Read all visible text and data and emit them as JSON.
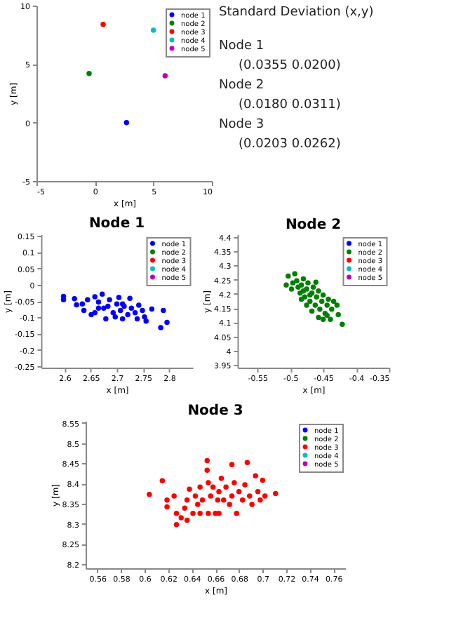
{
  "chart_data": [
    {
      "type": "scatter",
      "xlabel": "x [m]",
      "ylabel": "y [m]",
      "xlim": [
        -5,
        10
      ],
      "ylim": [
        -5,
        10
      ],
      "xticks": [
        -5,
        0,
        5,
        10
      ],
      "yticks": [
        -5,
        0,
        5,
        10
      ],
      "legend": "top right",
      "marker": "circle",
      "series": [
        {
          "name": "node 1",
          "color": "#0000ff",
          "x": [
            2.7
          ],
          "values": [
            0
          ]
        },
        {
          "name": "node 2",
          "color": "#008000",
          "x": [
            -0.5
          ],
          "values": [
            4.2
          ]
        },
        {
          "name": "node 3",
          "color": "#ff0000",
          "x": [
            0.7
          ],
          "values": [
            8.4
          ]
        },
        {
          "name": "node 4",
          "color": "#00bfbf",
          "x": [
            5.0
          ],
          "values": [
            7.9
          ]
        },
        {
          "name": "node 5",
          "color": "#bf00bf",
          "x": [
            6.0
          ],
          "values": [
            4.0
          ]
        }
      ]
    },
    {
      "type": "other",
      "title": "Standard Deviation (x,y)",
      "annotations": [
        "Node 1",
        "(0.0355     0.0200)",
        "Node 2",
        "(0.0180     0.0311)",
        "Node 3",
        "(0.0203     0.0262)"
      ]
    },
    {
      "type": "scatter",
      "title": "Node 1",
      "xlabel": "x [m]",
      "ylabel": "y [m]",
      "xlim": [
        2.555,
        2.845
      ],
      "ylim": [
        -0.255,
        0.155
      ],
      "xticks": [
        2.6,
        2.65,
        2.7,
        2.75,
        2.8
      ],
      "yticks": [
        -0.25,
        -0.2,
        -0.15,
        -0.1,
        -0.05,
        0,
        0.05,
        0.1,
        0.15
      ],
      "legend": "top right",
      "marker": "circle",
      "series": [
        {
          "name": "node 1",
          "color": "#0000ff",
          "x": [
            2.598,
            2.598,
            2.619,
            2.623,
            2.634,
            2.637,
            2.644,
            2.651,
            2.658,
            2.665,
            2.672,
            2.675,
            2.679,
            2.686,
            2.693,
            2.7,
            2.704,
            2.707,
            2.711,
            2.714,
            2.721,
            2.725,
            2.728,
            2.735,
            2.739,
            2.742,
            2.749,
            2.753,
            2.756,
            2.767,
            2.789,
            2.784,
            2.796,
            2.665,
            2.683,
            2.697,
            2.711,
            2.658
          ],
          "values": [
            -0.036,
            -0.046,
            -0.043,
            -0.062,
            -0.059,
            -0.079,
            -0.046,
            -0.092,
            -0.037,
            -0.053,
            -0.029,
            -0.072,
            -0.105,
            -0.046,
            -0.086,
            -0.059,
            -0.039,
            -0.079,
            -0.105,
            -0.066,
            -0.092,
            -0.042,
            -0.072,
            -0.086,
            -0.105,
            -0.063,
            -0.079,
            -0.099,
            -0.112,
            -0.075,
            -0.079,
            -0.132,
            -0.116,
            -0.072,
            -0.066,
            -0.099,
            -0.059,
            -0.086
          ]
        },
        {
          "name": "node 2",
          "color": "#008000"
        },
        {
          "name": "node 3",
          "color": "#ff0000"
        },
        {
          "name": "node 4",
          "color": "#00bfbf"
        },
        {
          "name": "node 5",
          "color": "#bf00bf"
        }
      ]
    },
    {
      "type": "scatter",
      "title": "Node 2",
      "xlabel": "x [m]",
      "ylabel": "y [m]",
      "xlim": [
        -0.58,
        -0.35
      ],
      "ylim": [
        3.94,
        4.41
      ],
      "xticks": [
        -0.55,
        -0.5,
        -0.45,
        -0.4,
        -0.35
      ],
      "yticks": [
        3.95,
        4,
        4.05,
        4.1,
        4.15,
        4.2,
        4.25,
        4.3,
        4.35,
        4.4
      ],
      "legend": "top right",
      "marker": "circle",
      "series": [
        {
          "name": "node 1",
          "color": "#0000ff"
        },
        {
          "name": "node 2",
          "color": "#008000",
          "x": [
            -0.506,
            -0.503,
            -0.493,
            -0.498,
            -0.49,
            -0.485,
            -0.483,
            -0.48,
            -0.478,
            -0.475,
            -0.473,
            -0.47,
            -0.467,
            -0.465,
            -0.462,
            -0.46,
            -0.457,
            -0.455,
            -0.452,
            -0.45,
            -0.447,
            -0.444,
            -0.442,
            -0.439,
            -0.437,
            -0.434,
            -0.429,
            -0.427,
            -0.421,
            -0.467,
            -0.475,
            -0.483,
            -0.457,
            -0.45,
            -0.444,
            -0.488,
            -0.496,
            -0.461,
            -0.48,
            -0.47
          ],
          "values": [
            4.231,
            4.263,
            4.271,
            4.217,
            4.246,
            4.203,
            4.231,
            4.253,
            4.189,
            4.217,
            4.239,
            4.174,
            4.203,
            4.224,
            4.16,
            4.189,
            4.21,
            4.146,
            4.174,
            4.196,
            4.131,
            4.16,
            4.181,
            4.11,
            4.146,
            4.174,
            4.16,
            4.127,
            4.093,
            4.139,
            4.16,
            4.181,
            4.117,
            4.11,
            4.124,
            4.224,
            4.239,
            4.241,
            4.21,
            4.196
          ]
        },
        {
          "name": "node 3",
          "color": "#ff0000"
        },
        {
          "name": "node 4",
          "color": "#00bfbf"
        },
        {
          "name": "node 5",
          "color": "#bf00bf"
        }
      ]
    },
    {
      "type": "scatter",
      "title": "Node 3",
      "xlabel": "x [m]",
      "ylabel": "y [m]",
      "xlim": [
        0.55,
        0.77
      ],
      "ylim": [
        8.19,
        8.555
      ],
      "xticks": [
        0.56,
        0.58,
        0.6,
        0.62,
        0.64,
        0.66,
        0.68,
        0.7,
        0.72,
        0.74,
        0.76
      ],
      "yticks": [
        8.2,
        8.25,
        8.3,
        8.35,
        8.4,
        8.45,
        8.5,
        8.55
      ],
      "legend": "top right",
      "marker": "circle",
      "series": [
        {
          "name": "node 1",
          "color": "#0000ff"
        },
        {
          "name": "node 2",
          "color": "#008000"
        },
        {
          "name": "node 3",
          "color": "#ff0000",
          "x": [
            0.604,
            0.615,
            0.619,
            0.619,
            0.625,
            0.627,
            0.627,
            0.631,
            0.634,
            0.636,
            0.638,
            0.641,
            0.643,
            0.645,
            0.647,
            0.649,
            0.653,
            0.653,
            0.654,
            0.654,
            0.656,
            0.658,
            0.66,
            0.662,
            0.663,
            0.665,
            0.667,
            0.669,
            0.672,
            0.674,
            0.674,
            0.676,
            0.678,
            0.68,
            0.683,
            0.685,
            0.687,
            0.689,
            0.691,
            0.694,
            0.696,
            0.698,
            0.7,
            0.702,
            0.711,
            0.636,
            0.647,
            0.663
          ],
          "values": [
            8.373,
            8.407,
            8.359,
            8.342,
            8.369,
            8.326,
            8.298,
            8.315,
            8.339,
            8.359,
            8.386,
            8.326,
            8.369,
            8.348,
            8.391,
            8.359,
            8.457,
            8.433,
            8.402,
            8.326,
            8.369,
            8.391,
            8.326,
            8.359,
            8.38,
            8.413,
            8.359,
            8.391,
            8.348,
            8.447,
            8.369,
            8.402,
            8.326,
            8.38,
            8.359,
            8.397,
            8.452,
            8.369,
            8.348,
            8.419,
            8.38,
            8.359,
            8.408,
            8.369,
            8.375,
            8.309,
            8.326,
            8.326
          ]
        },
        {
          "name": "node 4",
          "color": "#00bfbf"
        },
        {
          "name": "node 5",
          "color": "#bf00bf"
        }
      ]
    }
  ]
}
